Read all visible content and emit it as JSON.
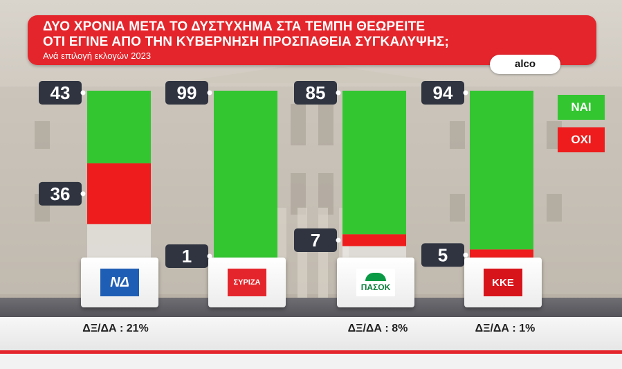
{
  "header": {
    "title_line1": "ΔΥΟ ΧΡΟΝΙΑ ΜΕΤΑ ΤΟ ΔΥΣΤΥΧΗΜΑ ΣΤΑ ΤΕΜΠΗ ΘΕΩΡΕΙΤΕ",
    "title_line2": "ΟΤΙ ΕΓΙΝΕ  ΑΠΟ ΤΗΝ ΚΥΒΕΡΝΗΣΗ ΠΡΟΣΠΑΘΕΙΑ ΣΥΓΚΑΛΥΨΗΣ;",
    "subtitle": "Ανά επιλογή εκλογών 2023",
    "source": "alco"
  },
  "colors": {
    "yes": "#33c631",
    "no": "#ee1c1c",
    "accent": "#e4262c"
  },
  "chart_data": {
    "type": "bar",
    "stacked": true,
    "title": "ΔΥΟ ΧΡΟΝΙΑ ΜΕΤΑ ΤΟ ΔΥΣΤΥΧΗΜΑ ΣΤΑ ΤΕΜΠΗ ΘΕΩΡΕΙΤΕ ΟΤΙ ΕΓΙΝΕ  ΑΠΟ ΤΗΝ ΚΥΒΕΡΝΗΣΗ ΠΡΟΣΠΑΘΕΙΑ ΣΥΓΚΑΛΥΨΗΣ;",
    "subtitle": "Ανά επιλογή εκλογών 2023",
    "categories": [
      "ΝΔ",
      "ΣΥΡΙΖΑ",
      "ΠΑΣΟΚ",
      "ΚΚΕ"
    ],
    "series": [
      {
        "name": "ΝΑΙ",
        "values": [
          43,
          99,
          85,
          94
        ]
      },
      {
        "name": "ΟΧΙ",
        "values": [
          36,
          1,
          7,
          5
        ]
      }
    ],
    "dk_na": [
      "ΔΞ/ΔΑ : 21%",
      "",
      "ΔΞ/ΔΑ : 8%",
      "ΔΞ/ΔΑ : 1%"
    ],
    "ylim": [
      0,
      100
    ],
    "legend": "right",
    "grid": false
  },
  "parties": [
    {
      "logo": "ΝΔ",
      "icon": "nd-logo-icon"
    },
    {
      "logo": "ΣΥΡΙΖΑ",
      "icon": "syriza-logo-icon"
    },
    {
      "logo": "ΠΑΣΟΚ",
      "icon": "pasok-logo-icon"
    },
    {
      "logo": "ΚΚΕ",
      "icon": "kke-logo-icon"
    }
  ]
}
